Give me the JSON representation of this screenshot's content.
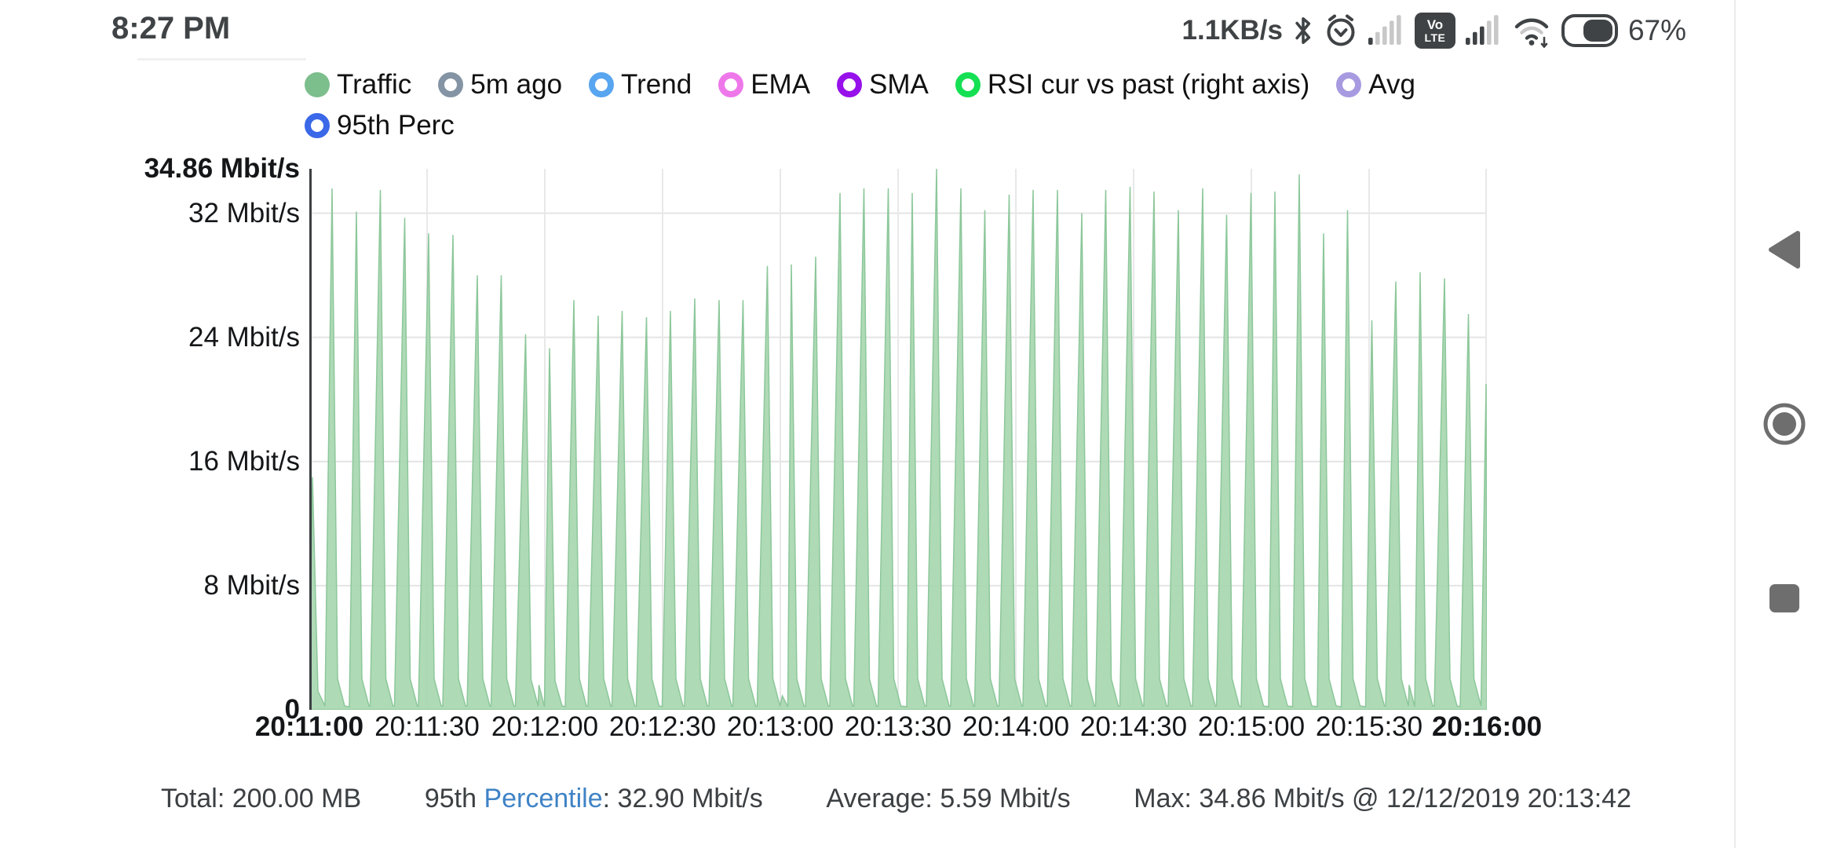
{
  "status_bar": {
    "time": "8:27 PM",
    "net_speed": "1.1KB/s",
    "battery_percent": "67%",
    "volte_line1": "Vo",
    "volte_line2": "LTE",
    "icon_color": "#3f4345",
    "signal_dim_color": "#c8c8c8",
    "sim1_bars_filled": 1,
    "sim2_bars_filled": 3
  },
  "legend": {
    "items": [
      {
        "label": "Traffic",
        "color": "#7cbe8c",
        "style": "filled"
      },
      {
        "label": "5m ago",
        "color": "#8494a4",
        "style": "ring"
      },
      {
        "label": "Trend",
        "color": "#58a5f0",
        "style": "ring"
      },
      {
        "label": "EMA",
        "color": "#ee78ea",
        "style": "ring"
      },
      {
        "label": "SMA",
        "color": "#9712ea",
        "style": "ring"
      },
      {
        "label": "RSI cur vs past (right axis)",
        "color": "#15e053",
        "style": "ring"
      },
      {
        "label": "Avg",
        "color": "#a89ae0",
        "style": "ring"
      },
      {
        "label": "95th Perc",
        "color": "#3a68e8",
        "style": "ring"
      }
    ]
  },
  "chart_data": {
    "type": "area",
    "series_name": "Traffic",
    "unit": "Mbit/s",
    "ylim": [
      0,
      34.86
    ],
    "grid": true,
    "fill_color": "#a6d6ae",
    "edge_color": "#8cc79a",
    "axis_color": "#3c4043",
    "grid_color": "#e4e4e4",
    "x_start": "20:11:00",
    "x_end": "20:16:00",
    "x_total_seconds": 300,
    "x_ticks": [
      "20:11:00",
      "20:11:30",
      "20:12:00",
      "20:12:30",
      "20:13:00",
      "20:13:30",
      "20:14:00",
      "20:14:30",
      "20:15:00",
      "20:15:30",
      "20:16:00"
    ],
    "y_ticks": [
      {
        "value": 34.86,
        "label": "34.86 Mbit/s",
        "bold": true
      },
      {
        "value": 32,
        "label": "32 Mbit/s",
        "bold": false
      },
      {
        "value": 24,
        "label": "24 Mbit/s",
        "bold": false
      },
      {
        "value": 16,
        "label": "16 Mbit/s",
        "bold": false
      },
      {
        "value": 8,
        "label": "8 Mbit/s",
        "bold": false
      },
      {
        "value": 0,
        "label": "0",
        "bold": true
      }
    ],
    "spikes": [
      [
        0.8,
        15.0
      ],
      [
        5.8,
        33.6
      ],
      [
        12.0,
        32.1
      ],
      [
        18.1,
        33.5
      ],
      [
        24.3,
        31.7
      ],
      [
        30.4,
        30.7
      ],
      [
        36.6,
        30.6
      ],
      [
        42.8,
        28.0
      ],
      [
        48.9,
        28.0
      ],
      [
        55.1,
        24.2
      ],
      [
        61.2,
        23.3
      ],
      [
        67.4,
        26.4
      ],
      [
        73.6,
        25.4
      ],
      [
        79.7,
        25.7
      ],
      [
        85.9,
        25.3
      ],
      [
        92.0,
        25.7
      ],
      [
        98.2,
        26.5
      ],
      [
        104.4,
        26.4
      ],
      [
        110.5,
        26.4
      ],
      [
        116.7,
        28.6
      ],
      [
        122.8,
        28.7
      ],
      [
        129.0,
        29.2
      ],
      [
        135.2,
        33.3
      ],
      [
        141.3,
        33.6
      ],
      [
        147.5,
        33.6
      ],
      [
        153.6,
        33.3
      ],
      [
        159.8,
        34.86
      ],
      [
        166.0,
        33.6
      ],
      [
        172.1,
        32.2
      ],
      [
        178.3,
        33.2
      ],
      [
        184.4,
        33.5
      ],
      [
        190.6,
        33.5
      ],
      [
        196.8,
        32.0
      ],
      [
        202.9,
        33.5
      ],
      [
        209.1,
        33.7
      ],
      [
        215.2,
        33.4
      ],
      [
        221.4,
        32.2
      ],
      [
        227.6,
        33.6
      ],
      [
        233.7,
        31.9
      ],
      [
        239.9,
        33.3
      ],
      [
        246.0,
        33.4
      ],
      [
        252.2,
        34.5
      ],
      [
        258.4,
        30.7
      ],
      [
        264.5,
        32.2
      ],
      [
        270.7,
        25.1
      ],
      [
        276.8,
        27.6
      ],
      [
        283.0,
        28.2
      ],
      [
        289.2,
        27.8
      ],
      [
        295.3,
        25.5
      ],
      [
        299.8,
        21.0
      ]
    ],
    "bumps": [
      [
        8.8,
        2.3
      ],
      [
        58.5,
        1.6
      ],
      [
        63.8,
        1.2
      ],
      [
        88.5,
        1.3
      ],
      [
        120.5,
        0.9
      ],
      [
        150.8,
        1.0
      ],
      [
        236.0,
        2.0
      ],
      [
        243.0,
        3.2
      ],
      [
        249.1,
        1.6
      ],
      [
        255.4,
        2.2
      ],
      [
        261.5,
        4.3
      ],
      [
        267.7,
        2.0
      ],
      [
        280.2,
        1.6
      ],
      [
        291.8,
        1.5
      ]
    ],
    "stats": {
      "total": "200.00 MB",
      "percentile_95": "32.90 Mbit/s",
      "average": "5.59 Mbit/s",
      "max": "34.86 Mbit/s",
      "max_time": "12/12/2019 20:13:42"
    }
  },
  "footer": {
    "total": "Total: 200.00 MB",
    "p95_prefix": "95th ",
    "p95_link": "Percentile",
    "p95_suffix": ": 32.90 Mbit/s",
    "average": "Average: 5.59 Mbit/s",
    "max": "Max: 34.86 Mbit/s @ 12/12/2019 20:13:42"
  }
}
